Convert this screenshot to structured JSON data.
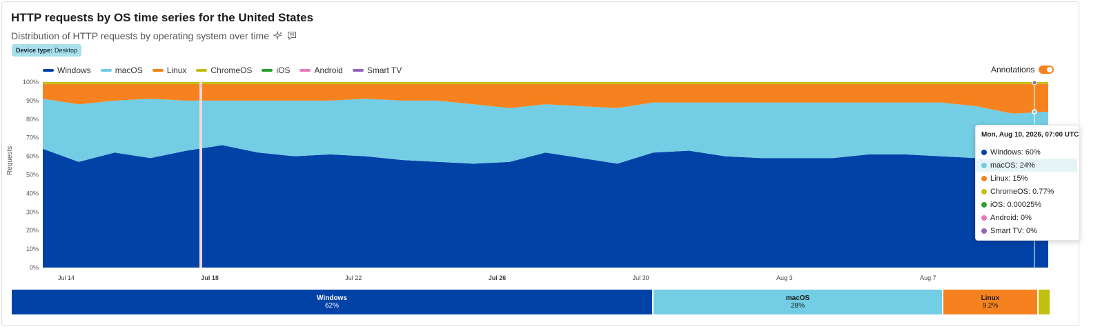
{
  "card": {
    "title": "HTTP requests by OS time series for the United States",
    "subtitle": "Distribution of HTTP requests by operating system over time",
    "filter_badge": {
      "key": "Device type:",
      "value": "Desktop"
    },
    "annotations_label": "Annotations",
    "annotations_on": true
  },
  "legend": [
    {
      "name": "Windows",
      "color": "#0142a7"
    },
    {
      "name": "macOS",
      "color": "#73cde4"
    },
    {
      "name": "Linux",
      "color": "#f6821f"
    },
    {
      "name": "ChromeOS",
      "color": "#bfc010"
    },
    {
      "name": "iOS",
      "color": "#2ba02b"
    },
    {
      "name": "Android",
      "color": "#e879c0"
    },
    {
      "name": "Smart TV",
      "color": "#9466bd"
    }
  ],
  "tooltip": {
    "title": "Mon, Aug 10, 2026, 07:00 UTC",
    "rows": [
      {
        "label": "Windows: 60%",
        "color": "#0142a7"
      },
      {
        "label": "macOS: 24%",
        "color": "#73cde4"
      },
      {
        "label": "Linux: 15%",
        "color": "#f6821f"
      },
      {
        "label": "ChromeOS: 0.77%",
        "color": "#bfc010"
      },
      {
        "label": "iOS: 0.00025%",
        "color": "#2ba02b"
      },
      {
        "label": "Android: 0%",
        "color": "#e879c0"
      },
      {
        "label": "Smart TV: 0%",
        "color": "#9466bd"
      }
    ]
  },
  "summary": [
    {
      "name": "Windows",
      "pct_label": "62%",
      "share": 62.0,
      "color": "#0142a7",
      "text_color": "#ffffff"
    },
    {
      "name": "macOS",
      "pct_label": "28%",
      "share": 28.0,
      "color": "#73cde4",
      "text_color": "#1a1a1a"
    },
    {
      "name": "Linux",
      "pct_label": "9.2%",
      "share": 9.2,
      "color": "#f6821f",
      "text_color": "#1a1a1a"
    },
    {
      "name": "",
      "pct_label": "",
      "share": 1.2,
      "color": "#bfc010",
      "text_color": "#1a1a1a"
    }
  ],
  "chart_data": {
    "type": "area",
    "stacked": true,
    "ylabel": "Requests",
    "yticks": [
      "0%",
      "10%",
      "20%",
      "30%",
      "40%",
      "50%",
      "60%",
      "70%",
      "80%",
      "90%",
      "100%"
    ],
    "ylim": [
      0,
      100
    ],
    "xticks": [
      {
        "label": "Jul 14",
        "bold": false
      },
      {
        "label": "Jul 18",
        "bold": true
      },
      {
        "label": "Jul 22",
        "bold": false
      },
      {
        "label": "Jul 26",
        "bold": true
      },
      {
        "label": "Jul 30",
        "bold": false
      },
      {
        "label": "Aug 3",
        "bold": false
      },
      {
        "label": "Aug 7",
        "bold": false
      }
    ],
    "x": [
      "Jul 13",
      "Jul 14",
      "Jul 15",
      "Jul 16",
      "Jul 17",
      "Jul 18",
      "Jul 19",
      "Jul 20",
      "Jul 21",
      "Jul 22",
      "Jul 23",
      "Jul 24",
      "Jul 25",
      "Jul 26",
      "Jul 27",
      "Jul 28",
      "Jul 29",
      "Jul 30",
      "Jul 31",
      "Aug 1",
      "Aug 2",
      "Aug 3",
      "Aug 4",
      "Aug 5",
      "Aug 6",
      "Aug 7",
      "Aug 8",
      "Aug 9",
      "Aug 10"
    ],
    "series": [
      {
        "name": "Windows",
        "color": "#0142a7",
        "values": [
          64,
          57,
          62,
          59,
          63,
          66,
          62,
          60,
          61,
          60,
          58,
          57,
          56,
          57,
          62,
          59,
          56,
          62,
          63,
          60,
          59,
          59,
          59,
          61,
          61,
          60,
          59,
          58,
          60
        ]
      },
      {
        "name": "macOS",
        "color": "#73cde4",
        "values": [
          27,
          31,
          28,
          32,
          27,
          24,
          28,
          30,
          29,
          31,
          32,
          33,
          32,
          29,
          26,
          28,
          30,
          27,
          26,
          29,
          30,
          30,
          30,
          28,
          28,
          29,
          28,
          25,
          24
        ]
      },
      {
        "name": "Linux",
        "color": "#f6821f",
        "values": [
          8,
          11,
          9,
          8,
          9,
          9,
          9,
          9,
          9,
          8,
          9,
          9,
          11,
          13,
          11,
          12,
          13,
          10,
          10,
          10,
          10,
          10,
          10,
          10,
          10,
          10,
          12,
          16,
          15
        ]
      },
      {
        "name": "ChromeOS",
        "color": "#bfc010",
        "values": [
          1,
          1,
          1,
          1,
          1,
          1,
          1,
          1,
          1,
          1,
          1,
          1,
          1,
          1,
          1,
          1,
          1,
          1,
          1,
          1,
          1,
          1,
          1,
          1,
          1,
          1,
          1,
          1,
          1
        ]
      },
      {
        "name": "iOS",
        "color": "#2ba02b",
        "values": [
          0,
          0,
          0,
          0,
          0,
          0,
          0,
          0,
          0,
          0,
          0,
          0,
          0,
          0,
          0,
          0,
          0,
          0,
          0,
          0,
          0,
          0,
          0,
          0,
          0,
          0,
          0,
          0,
          0
        ]
      },
      {
        "name": "Android",
        "color": "#e879c0",
        "values": [
          0,
          0,
          0,
          0,
          0,
          0,
          0,
          0,
          0,
          0,
          0,
          0,
          0,
          0,
          0,
          0,
          0,
          0,
          0,
          0,
          0,
          0,
          0,
          0,
          0,
          0,
          0,
          0,
          0
        ]
      },
      {
        "name": "Smart TV",
        "color": "#9466bd",
        "values": [
          0,
          0,
          0,
          0,
          0,
          0,
          0,
          0,
          0,
          0,
          0,
          0,
          0,
          0,
          0,
          0,
          0,
          0,
          0,
          0,
          0,
          0,
          0,
          0,
          0,
          0,
          0,
          0,
          0
        ]
      }
    ],
    "annotation_date": "Jul 17",
    "hover_date": "Aug 10",
    "grid": true,
    "legend_position": "top-left"
  }
}
